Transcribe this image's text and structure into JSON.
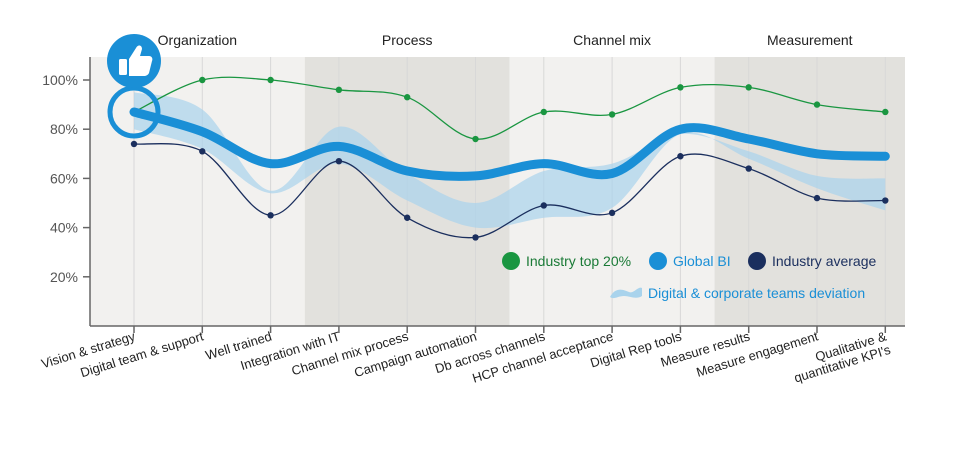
{
  "chart_data": {
    "type": "line",
    "title": "",
    "xlabel": "",
    "ylabel": "",
    "ylim": [
      0,
      105
    ],
    "yticks": [
      "20%",
      "40%",
      "60%",
      "80%",
      "100%"
    ],
    "grid": true,
    "legend_position": "bottom-right",
    "sections": [
      {
        "label": "Organization",
        "shade": "light"
      },
      {
        "label": "Process",
        "shade": "dark"
      },
      {
        "label": "Channel mix",
        "shade": "light"
      },
      {
        "label": "Measurement",
        "shade": "dark"
      }
    ],
    "categories": [
      "Vision & strategy",
      "Digital team & support",
      "Well trained",
      "Integration with IT",
      "Channel mix process",
      "Campaign automation",
      "Db across channels",
      "HCP channel acceptance",
      "Digital Rep tools",
      "Measure results",
      "Measure engagement",
      "Qualitative & quantitative KPI's"
    ],
    "section_of_category": [
      0,
      0,
      0,
      1,
      1,
      1,
      2,
      2,
      2,
      3,
      3,
      3
    ],
    "series": [
      {
        "name": "Industry top 20%",
        "color": "#1a9641",
        "style": "thin-markers",
        "values": [
          87,
          100,
          100,
          96,
          93,
          76,
          87,
          86,
          97,
          97,
          90,
          87
        ]
      },
      {
        "name": "Global BI",
        "color": "#1a8fd6",
        "style": "thick",
        "values": [
          87,
          79,
          66,
          73,
          63,
          61,
          66,
          62,
          80,
          76,
          70,
          69
        ]
      },
      {
        "name": "Industry average",
        "color": "#1b2f5e",
        "style": "thin-markers",
        "values": [
          74,
          71,
          45,
          67,
          44,
          36,
          49,
          46,
          69,
          64,
          52,
          51
        ]
      }
    ],
    "band": {
      "name": "Digital & corporate teams deviation",
      "color": "#a9d3ec",
      "upper": [
        95,
        88,
        55,
        81,
        62,
        50,
        63,
        66,
        78,
        71,
        61,
        60
      ],
      "lower": [
        80,
        72,
        54,
        66,
        51,
        40,
        44,
        48,
        78,
        68,
        56,
        47
      ]
    },
    "highlight": {
      "category_index": 0,
      "icon": "thumbs-up-icon"
    }
  },
  "legend": {
    "items": [
      {
        "label": "Industry top 20%",
        "color": "#1a9641",
        "text_color": "#1a7a36"
      },
      {
        "label": "Global BI",
        "color": "#1a8fd6",
        "text_color": "#1a8fd6"
      },
      {
        "label": "Industry average",
        "color": "#1b2f5e",
        "text_color": "#1b2f5e"
      }
    ],
    "band_label": "Digital & corporate teams deviation",
    "band_text_color": "#1a8fd6"
  },
  "colors": {
    "section_light": "#f2f1ef",
    "section_dark": "#e2e1dd",
    "axis": "#666666",
    "grid": "#d8d8d8"
  }
}
